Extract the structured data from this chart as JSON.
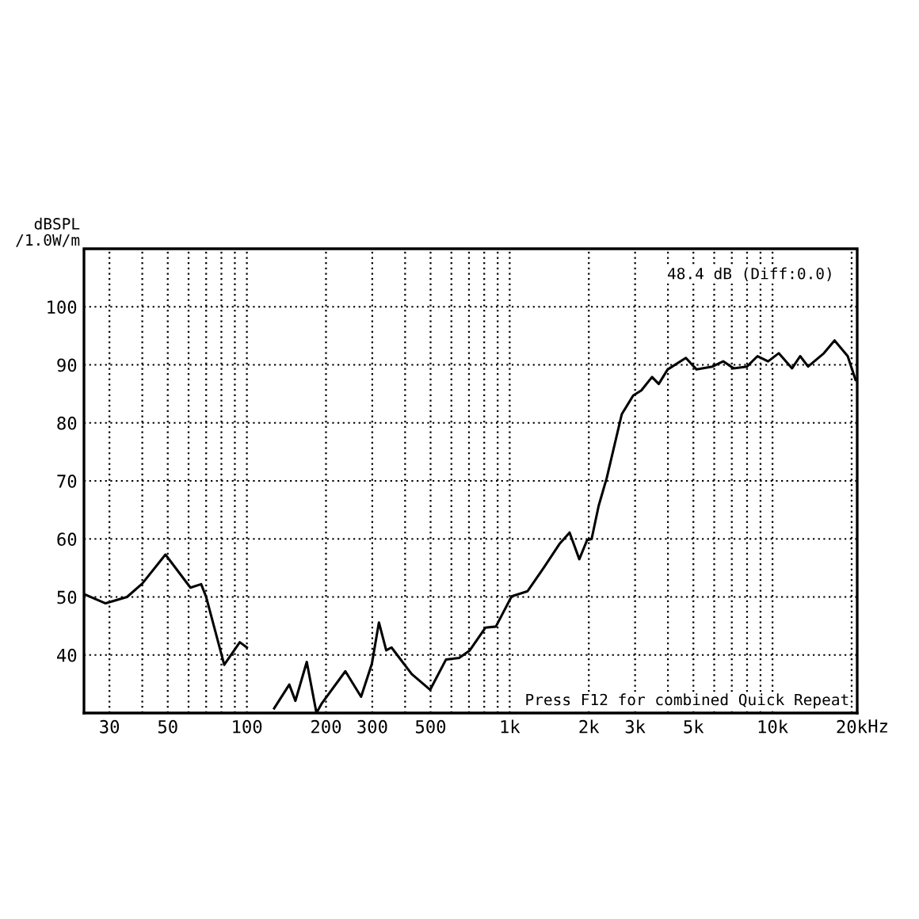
{
  "chart_data": {
    "type": "line",
    "ylabel": "dBSPL\n/1.0W/m",
    "log": "x",
    "grid": true,
    "line_style": "solid",
    "marker": "none",
    "annotations": [
      "48.4 dB (Diff:0.0)",
      "Press F12 for combined Quick Repeat"
    ],
    "xlim": [
      24,
      21000
    ],
    "ylim": [
      30,
      110
    ],
    "yticks": [
      {
        "value": 30,
        "label": null
      },
      40,
      50,
      60,
      70,
      80,
      90,
      100,
      {
        "value": 110,
        "label": null
      }
    ],
    "xticks": [
      30,
      {
        "value": 40,
        "label": null
      },
      50,
      {
        "value": 60,
        "label": null
      },
      {
        "value": 70,
        "label": null
      },
      {
        "value": 80,
        "label": null
      },
      {
        "value": 90,
        "label": null
      },
      100,
      200,
      300,
      {
        "value": 400,
        "label": null
      },
      500,
      {
        "value": 600,
        "label": null
      },
      {
        "value": 700,
        "label": null
      },
      {
        "value": 800,
        "label": null
      },
      {
        "value": 900,
        "label": null
      },
      {
        "value": 1000,
        "label": "1k"
      },
      {
        "value": 2000,
        "label": "2k"
      },
      {
        "value": 3000,
        "label": "3k"
      },
      {
        "value": 4000,
        "label": null
      },
      {
        "value": 5000,
        "label": "5k"
      },
      {
        "value": 6000,
        "label": null
      },
      {
        "value": 7000,
        "label": null
      },
      {
        "value": 8000,
        "label": null
      },
      {
        "value": 9000,
        "label": null
      },
      {
        "value": 10000,
        "label": "10k"
      },
      {
        "value": 20000,
        "label": "20k"
      }
    ],
    "xlabel": "Hz",
    "series": [
      {
        "color": "#000000",
        "x": [
          24.3,
          29,
          35,
          40,
          49,
          61,
          67,
          70,
          82,
          94,
          100,
          108,
          127,
          145,
          153,
          169,
          184,
          193,
          237,
          272,
          299,
          318,
          339,
          355,
          424,
          498,
          572,
          642,
          705,
          808,
          886,
          1017,
          1170,
          1346,
          1545,
          1690,
          1840,
          1970,
          2050,
          2180,
          2340,
          2670,
          2950,
          3170,
          3480,
          3690,
          3990,
          4680,
          5140,
          5910,
          6490,
          7110,
          8000,
          8770,
          9620,
          10560,
          11870,
          12740,
          13660,
          15690,
          17220,
          19320,
          20700
        ],
        "values": [
          50.4,
          48.9,
          50,
          52.3,
          57.3,
          51.6,
          52.2,
          50,
          38.3,
          42.2,
          41.3,
          null,
          30.8,
          34.9,
          32.1,
          38.8,
          30,
          31.7,
          37.2,
          32.8,
          38.5,
          45.6,
          40.8,
          41.3,
          36.7,
          34,
          39.2,
          39.5,
          40.8,
          44.7,
          44.9,
          50.1,
          51,
          55,
          59.1,
          61.1,
          56.5,
          59.8,
          60,
          65.7,
          70.5,
          81.5,
          84.7,
          85.6,
          87.9,
          86.7,
          89.2,
          91.2,
          89.2,
          89.7,
          90.6,
          89.4,
          89.7,
          91.5,
          90.6,
          92,
          89.4,
          91.5,
          89.7,
          92,
          94.2,
          91.5,
          87.4
        ]
      }
    ]
  }
}
